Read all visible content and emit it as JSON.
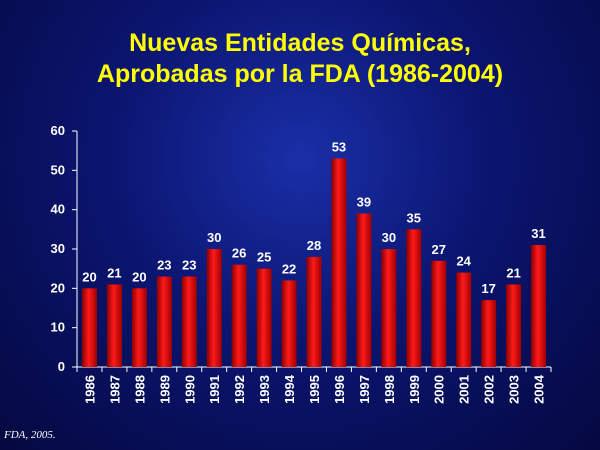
{
  "chart_data": {
    "type": "bar",
    "title_lines": [
      "Nuevas Entidades Químicas,",
      "Aprobadas por la FDA (1986-2004)"
    ],
    "categories": [
      "1986",
      "1987",
      "1988",
      "1989",
      "1990",
      "1991",
      "1992",
      "1993",
      "1994",
      "1995",
      "1996",
      "1997",
      "1998",
      "1999",
      "2000",
      "2001",
      "2002",
      "2003",
      "2004"
    ],
    "values": [
      20,
      21,
      20,
      23,
      23,
      30,
      26,
      25,
      22,
      28,
      53,
      39,
      30,
      35,
      27,
      24,
      17,
      21,
      31
    ],
    "ylim": [
      0,
      60
    ],
    "yticks": [
      0,
      10,
      20,
      30,
      40,
      50,
      60
    ],
    "grid": false,
    "bar_color": "#e00000",
    "text_color": "#ffffff",
    "title_color": "#ffff00"
  },
  "source_note": "FDA, 2005."
}
